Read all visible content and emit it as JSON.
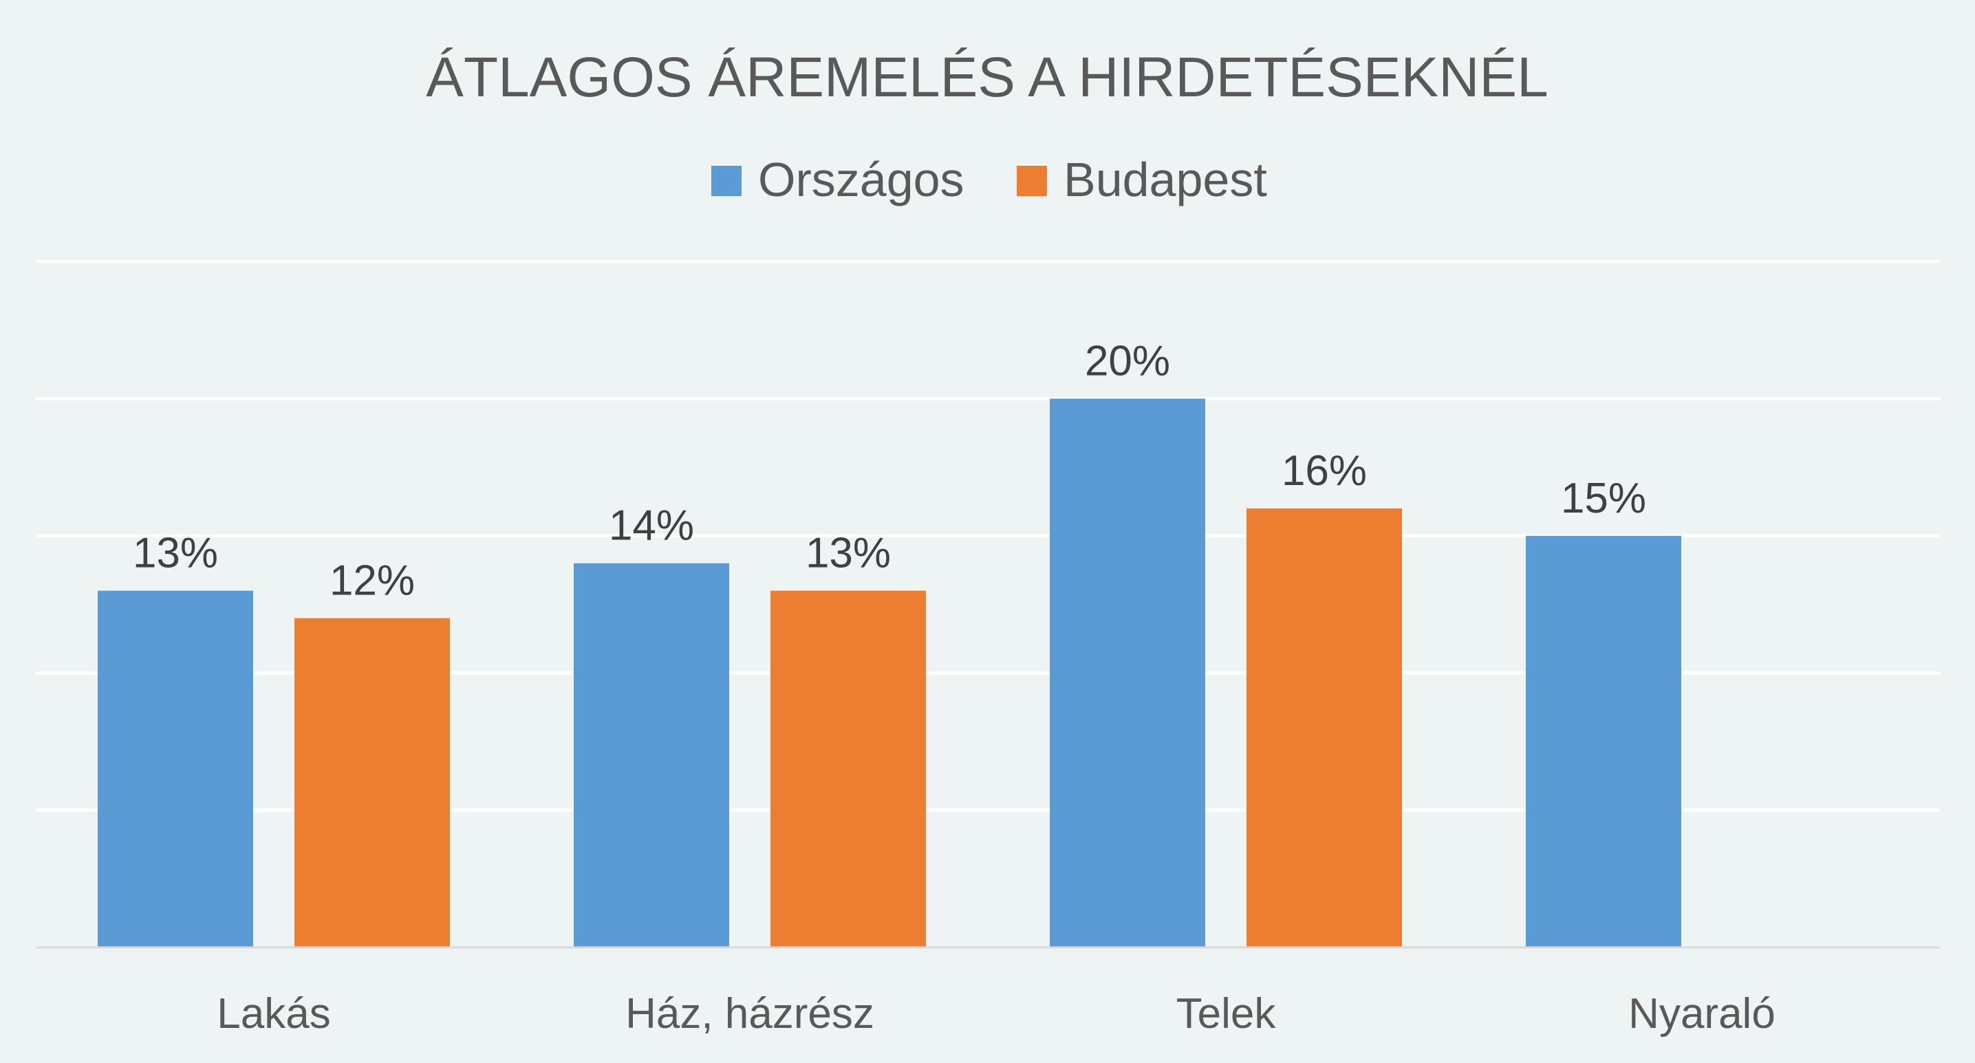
{
  "chart_data": {
    "type": "bar",
    "title": "ÁTLAGOS ÁREMELÉS A HIRDETÉSEKNÉL",
    "xlabel": "",
    "ylabel": "",
    "categories": [
      "Lakás",
      "Ház, házrész",
      "Telek",
      "Nyaraló"
    ],
    "series": [
      {
        "name": "Országos",
        "color": "#5b9bd5",
        "values": [
          13,
          14,
          20,
          15
        ],
        "labels": [
          "13%",
          "14%",
          "20%",
          "15%"
        ]
      },
      {
        "name": "Budapest",
        "color": "#ed7d31",
        "values": [
          12,
          13,
          16,
          null
        ],
        "labels": [
          "12%",
          "13%",
          "16%",
          ""
        ]
      }
    ],
    "ylim": [
      0,
      25
    ],
    "grid": true,
    "y_tick_labels_shown": false,
    "legend_position": "top-center",
    "value_unit": "%"
  },
  "style": {
    "background": "#eef3f3",
    "gridline_color": "#ffffff",
    "axis_color": "#d9d9d9",
    "text_color": "#595959",
    "label_color": "#404040"
  }
}
